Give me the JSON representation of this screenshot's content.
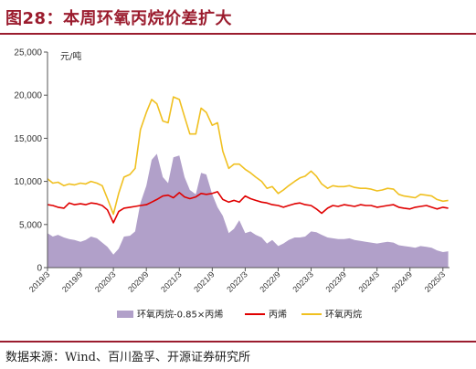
{
  "figure": {
    "title": "图28：本周环氧丙烷价差扩大",
    "source": "数据来源：Wind、百川盈孚、开源证券研究所"
  },
  "colors": {
    "accent": "#9b1c2e",
    "spread": "#b1a0c9",
    "propylene": "#e00000",
    "po": "#f0c020"
  },
  "chart_data": {
    "type": "line",
    "title": "",
    "ylabel": "元/吨",
    "ylim": [
      0,
      25000
    ],
    "yticks": [
      "0",
      "5,000",
      "10,000",
      "15,000",
      "20,000",
      "25,000"
    ],
    "yticks_values": [
      0,
      5000,
      10000,
      15000,
      20000,
      25000
    ],
    "xlim": [
      2019.17,
      2025.27
    ],
    "xticks": [
      "2019/3",
      "2019/9",
      "2020/3",
      "2020/9",
      "2021/3",
      "2021/9",
      "2022/3",
      "2022/9",
      "2023/3",
      "2023/9",
      "2024/3",
      "2024/9",
      "2025/3"
    ],
    "xticks_values": [
      2019.17,
      2019.67,
      2020.17,
      2020.67,
      2021.17,
      2021.67,
      2022.17,
      2022.67,
      2023.17,
      2023.67,
      2024.17,
      2024.67,
      2025.17
    ],
    "legend": "bottom",
    "x": [
      2019.17,
      2019.25,
      2019.33,
      2019.42,
      2019.5,
      2019.58,
      2019.67,
      2019.75,
      2019.83,
      2019.92,
      2020.0,
      2020.08,
      2020.17,
      2020.25,
      2020.33,
      2020.42,
      2020.5,
      2020.58,
      2020.67,
      2020.75,
      2020.83,
      2020.92,
      2021.0,
      2021.08,
      2021.17,
      2021.25,
      2021.33,
      2021.42,
      2021.5,
      2021.58,
      2021.67,
      2021.75,
      2021.83,
      2021.92,
      2022.0,
      2022.08,
      2022.17,
      2022.25,
      2022.33,
      2022.42,
      2022.5,
      2022.58,
      2022.67,
      2022.75,
      2022.83,
      2022.92,
      2023.0,
      2023.08,
      2023.17,
      2023.25,
      2023.33,
      2023.42,
      2023.5,
      2023.58,
      2023.67,
      2023.75,
      2023.83,
      2023.92,
      2024.0,
      2024.08,
      2024.17,
      2024.25,
      2024.33,
      2024.42,
      2024.5,
      2024.58,
      2024.67,
      2024.75,
      2024.83,
      2024.92,
      2025.0,
      2025.08,
      2025.17,
      2025.25
    ],
    "series": [
      {
        "name": "环氧丙烷-0.85×丙烯",
        "type": "area",
        "values": [
          4000,
          3600,
          3800,
          3500,
          3300,
          3200,
          3000,
          3200,
          3600,
          3400,
          2900,
          2400,
          1500,
          2200,
          3600,
          3700,
          4200,
          7500,
          9500,
          12500,
          13200,
          10500,
          9800,
          12800,
          13000,
          10500,
          9000,
          8500,
          11000,
          10800,
          8500,
          7000,
          6000,
          4000,
          4500,
          5500,
          4000,
          4200,
          3800,
          3500,
          2800,
          3200,
          2500,
          2800,
          3200,
          3500,
          3500,
          3600,
          4200,
          4100,
          3800,
          3500,
          3400,
          3300,
          3300,
          3400,
          3200,
          3100,
          3000,
          2900,
          2800,
          2900,
          3000,
          2900,
          2600,
          2500,
          2400,
          2300,
          2500,
          2400,
          2300,
          2000,
          1800,
          1900
        ]
      },
      {
        "name": "丙烯",
        "type": "line",
        "values": [
          7300,
          7200,
          7000,
          6900,
          7500,
          7300,
          7400,
          7300,
          7500,
          7400,
          7200,
          6700,
          5200,
          6500,
          6900,
          7000,
          7100,
          7200,
          7300,
          7600,
          7900,
          8300,
          8400,
          8100,
          8700,
          8200,
          8000,
          8200,
          8600,
          8500,
          8600,
          8800,
          7900,
          7600,
          7800,
          7600,
          8300,
          8000,
          7800,
          7600,
          7500,
          7300,
          7200,
          7000,
          7200,
          7400,
          7500,
          7300,
          7200,
          6800,
          6300,
          6900,
          7200,
          7100,
          7300,
          7200,
          7100,
          7300,
          7200,
          7200,
          7000,
          7100,
          7200,
          7300,
          7000,
          6900,
          6800,
          7000,
          7100,
          7200,
          7000,
          6800,
          7000,
          6900
        ]
      },
      {
        "name": "环氧丙烷",
        "type": "line",
        "values": [
          10300,
          9800,
          9900,
          9500,
          9700,
          9600,
          9800,
          9700,
          10000,
          9800,
          9500,
          8000,
          6200,
          8600,
          10500,
          10800,
          11500,
          16000,
          18000,
          19500,
          19000,
          17000,
          16800,
          19800,
          19500,
          17500,
          15500,
          15500,
          18500,
          18000,
          16500,
          16800,
          13500,
          11500,
          12000,
          12000,
          11400,
          11000,
          10500,
          10000,
          9200,
          9400,
          8600,
          9000,
          9500,
          10000,
          10400,
          10600,
          11200,
          10600,
          9700,
          9200,
          9500,
          9400,
          9400,
          9500,
          9300,
          9200,
          9200,
          9100,
          8900,
          9000,
          9200,
          9100,
          8500,
          8300,
          8200,
          8100,
          8500,
          8400,
          8300,
          7900,
          7700,
          7800
        ]
      }
    ]
  }
}
